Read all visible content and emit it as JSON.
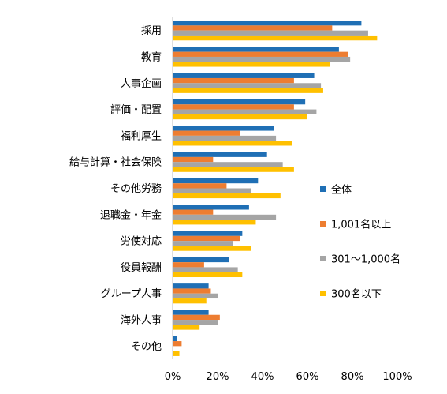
{
  "chart_data": {
    "type": "bar",
    "orientation": "horizontal",
    "categories": [
      "採用",
      "教育",
      "人事企画",
      "評価・配置",
      "福利厚生",
      "給与計算・社会保険",
      "その他労務",
      "退職金・年金",
      "労使対応",
      "役員報酬",
      "グループ人事",
      "海外人事",
      "その他"
    ],
    "series": [
      {
        "name": "全体",
        "color": "#1F6FB5",
        "values": [
          84,
          74,
          63,
          59,
          45,
          42,
          38,
          34,
          31,
          25,
          16,
          16,
          2
        ]
      },
      {
        "name": "1,001名以上",
        "color": "#ED7D31",
        "values": [
          71,
          78,
          54,
          54,
          30,
          18,
          24,
          18,
          30,
          14,
          17,
          21,
          4
        ]
      },
      {
        "name": "301～1,000名",
        "color": "#A5A5A5",
        "values": [
          87,
          79,
          66,
          64,
          46,
          49,
          35,
          46,
          27,
          29,
          20,
          20,
          0
        ]
      },
      {
        "name": "300名以下",
        "color": "#FFC000",
        "values": [
          91,
          70,
          67,
          60,
          53,
          54,
          48,
          37,
          35,
          31,
          15,
          12,
          3
        ]
      }
    ],
    "xlim": [
      0,
      100
    ],
    "xticks": [
      "0%",
      "20%",
      "40%",
      "60%",
      "80%",
      "100%"
    ],
    "grid": false,
    "legend_position": "right"
  }
}
